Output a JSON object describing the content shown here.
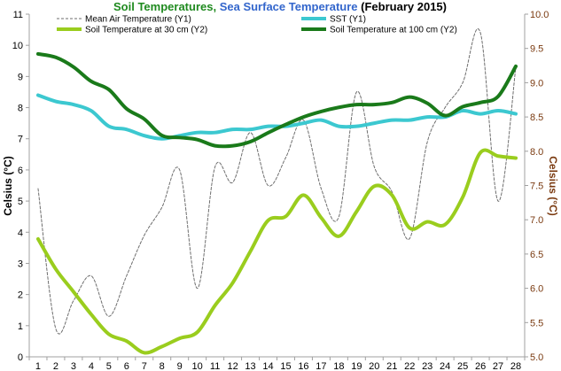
{
  "chart_data": {
    "type": "line",
    "title": {
      "part1": "Soil Temperatures",
      "sep": ", ",
      "part2": "Sea Surface Temperature",
      "part3": " (February 2015)"
    },
    "ylabel_left": "Celsius (°C)",
    "ylabel_right": "Celsius (°C)",
    "x": [
      1,
      2,
      3,
      4,
      5,
      6,
      7,
      8,
      9,
      10,
      11,
      12,
      13,
      14,
      15,
      16,
      17,
      18,
      19,
      20,
      21,
      22,
      23,
      24,
      25,
      26,
      27,
      28
    ],
    "x_ticks": [
      "1",
      "2",
      "3",
      "4",
      "5",
      "6",
      "7",
      "8",
      "9",
      "10",
      "11",
      "12",
      "13",
      "14",
      "15",
      "16",
      "17",
      "18",
      "19",
      "20",
      "21",
      "22",
      "23",
      "24",
      "25",
      "26",
      "27",
      "28"
    ],
    "y1_range": [
      0,
      11
    ],
    "y1_ticks": [
      "0",
      "1",
      "2",
      "3",
      "4",
      "5",
      "6",
      "7",
      "8",
      "9",
      "10",
      "11"
    ],
    "y2_range": [
      5.0,
      10.0
    ],
    "y2_ticks": [
      "5.0",
      "5.5",
      "6.0",
      "6.5",
      "7.0",
      "7.5",
      "8.0",
      "8.5",
      "9.0",
      "9.5",
      "10.0"
    ],
    "legend_placement": "top",
    "colors": {
      "title_green": "#1f8a1f",
      "title_blue": "#3366cc",
      "right_axis": "#7a3a10",
      "axes": "#a0a0a0"
    },
    "series": [
      {
        "name": "Mean Air Temperature (Y1)",
        "axis": "y1",
        "style": "dashed",
        "color": "#6e6e6e",
        "width": 1,
        "values": [
          5.4,
          0.9,
          1.8,
          2.6,
          1.3,
          2.6,
          3.9,
          4.8,
          6.0,
          2.2,
          6.1,
          5.6,
          7.2,
          5.5,
          6.4,
          7.6,
          5.4,
          4.5,
          8.5,
          6.1,
          5.3,
          3.8,
          6.9,
          8.0,
          8.8,
          10.4,
          5.0,
          9.3
        ]
      },
      {
        "name": "SST (Y1)",
        "axis": "y1",
        "style": "solid",
        "color": "#3cc8d0",
        "width": 4,
        "values": [
          8.4,
          8.2,
          8.1,
          7.9,
          7.4,
          7.3,
          7.1,
          7.0,
          7.1,
          7.2,
          7.2,
          7.3,
          7.3,
          7.4,
          7.4,
          7.5,
          7.6,
          7.4,
          7.4,
          7.5,
          7.6,
          7.6,
          7.7,
          7.7,
          7.9,
          7.8,
          7.9,
          7.8
        ]
      },
      {
        "name": "Soil Temperature at 30 cm (Y2)",
        "axis": "y2",
        "style": "solid",
        "color": "#9acd1e",
        "width": 4,
        "values": [
          6.72,
          6.28,
          5.95,
          5.62,
          5.33,
          5.23,
          5.06,
          5.15,
          5.27,
          5.36,
          5.75,
          6.08,
          6.54,
          6.99,
          7.05,
          7.36,
          7.03,
          6.76,
          7.12,
          7.49,
          7.36,
          6.88,
          6.97,
          6.93,
          7.33,
          7.98,
          7.93,
          7.9
        ]
      },
      {
        "name": "Soil Temperature at 100 cm (Y2)",
        "axis": "y2",
        "style": "solid",
        "color": "#1a7a1a",
        "width": 4,
        "values": [
          9.42,
          9.37,
          9.23,
          9.02,
          8.9,
          8.62,
          8.47,
          8.23,
          8.2,
          8.17,
          8.08,
          8.08,
          8.14,
          8.27,
          8.39,
          8.5,
          8.58,
          8.64,
          8.68,
          8.68,
          8.71,
          8.79,
          8.7,
          8.52,
          8.65,
          8.71,
          8.8,
          9.24
        ]
      }
    ]
  }
}
